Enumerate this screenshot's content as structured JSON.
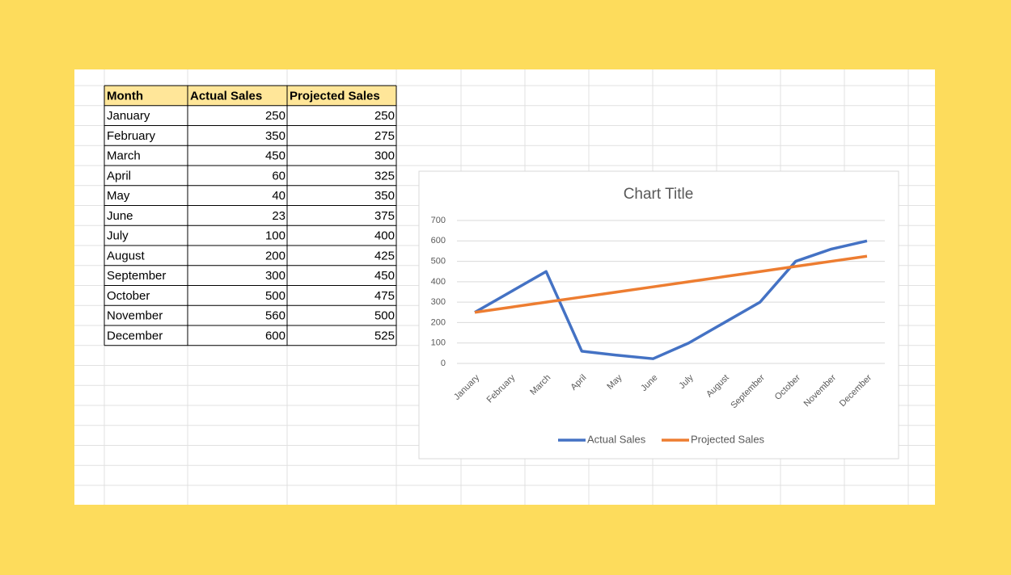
{
  "table": {
    "header": [
      "Month",
      "Actual Sales",
      "Projected Sales"
    ],
    "rows": [
      [
        "January",
        250,
        250
      ],
      [
        "February",
        350,
        275
      ],
      [
        "March",
        450,
        300
      ],
      [
        "April",
        60,
        325
      ],
      [
        "May",
        40,
        350
      ],
      [
        "June",
        23,
        375
      ],
      [
        "July",
        100,
        400
      ],
      [
        "August",
        200,
        425
      ],
      [
        "September",
        300,
        450
      ],
      [
        "October",
        500,
        475
      ],
      [
        "November",
        560,
        500
      ],
      [
        "December",
        600,
        525
      ]
    ]
  },
  "chart_data": {
    "type": "line",
    "title": "Chart Title",
    "categories": [
      "January",
      "February",
      "March",
      "April",
      "May",
      "June",
      "July",
      "August",
      "September",
      "October",
      "November",
      "December"
    ],
    "series": [
      {
        "name": "Actual Sales",
        "color": "#4472c4",
        "values": [
          250,
          350,
          450,
          60,
          40,
          23,
          100,
          200,
          300,
          500,
          560,
          600
        ]
      },
      {
        "name": "Projected Sales",
        "color": "#ed7d31",
        "values": [
          250,
          275,
          300,
          325,
          350,
          375,
          400,
          425,
          450,
          475,
          500,
          525
        ]
      }
    ],
    "ylim": [
      0,
      700
    ],
    "yticks": [
      0,
      100,
      200,
      300,
      400,
      500,
      600,
      700
    ],
    "grid": true,
    "legend": "bottom"
  }
}
